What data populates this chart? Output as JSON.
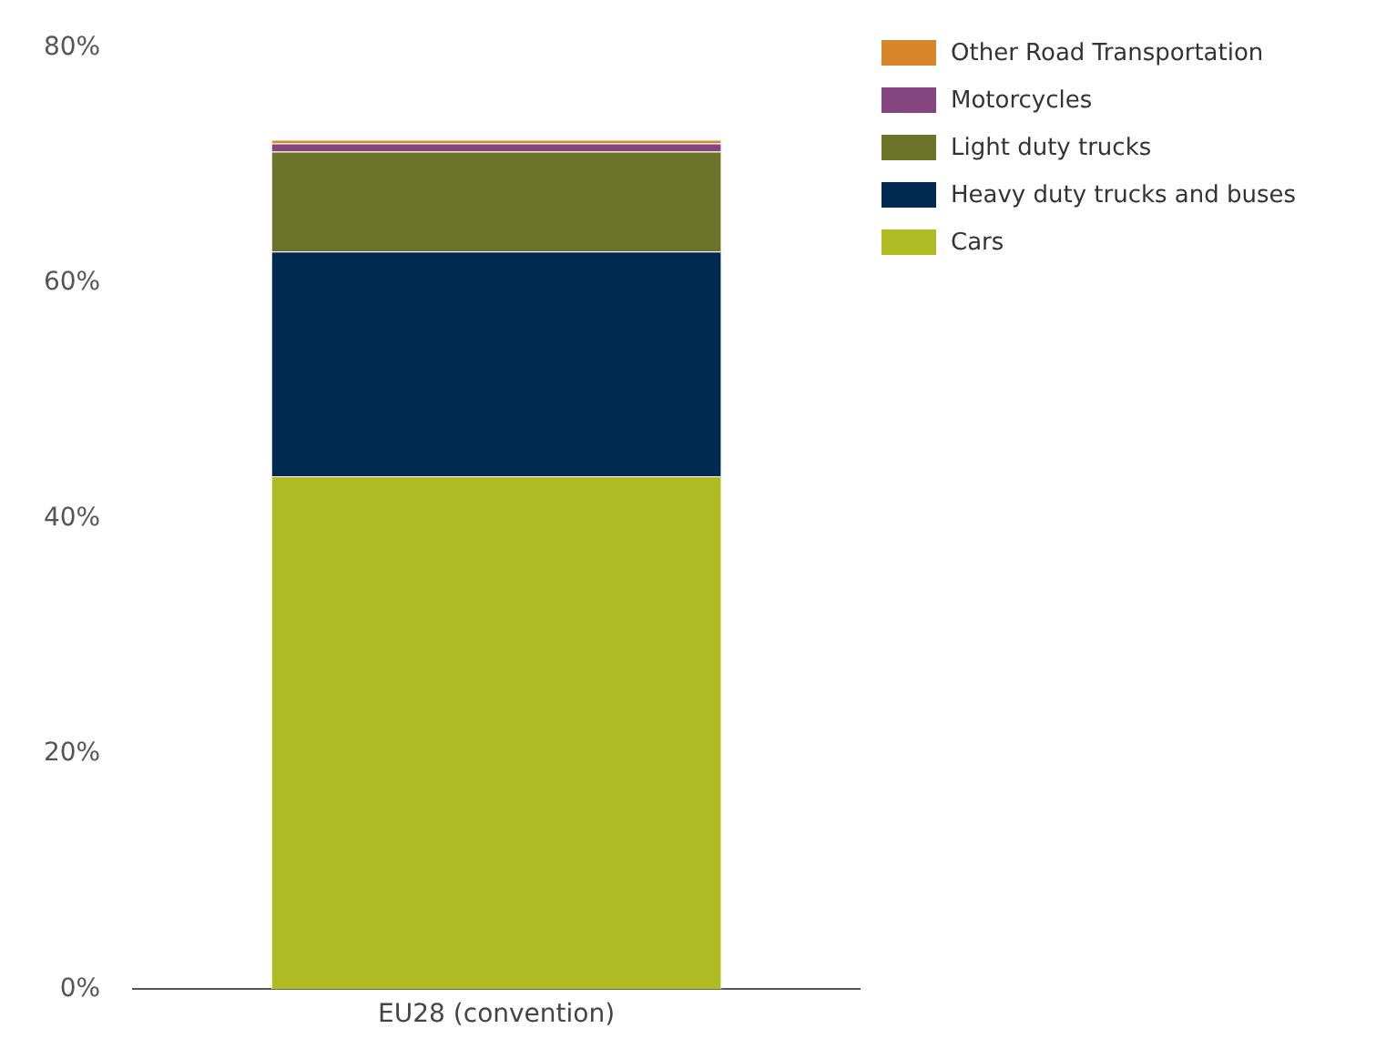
{
  "chart_data": {
    "type": "bar",
    "stacked": true,
    "categories": [
      "EU28 (convention)"
    ],
    "series": [
      {
        "name": "Cars",
        "color": "#afbb22",
        "values": [
          43.6
        ]
      },
      {
        "name": "Heavy duty trucks and buses",
        "color": "#002a52",
        "values": [
          19.1
        ]
      },
      {
        "name": "Light duty trucks",
        "color": "#6b7428",
        "values": [
          8.5
        ]
      },
      {
        "name": "Motorcycles",
        "color": "#84457f",
        "values": [
          0.7
        ]
      },
      {
        "name": "Other Road Transportation",
        "color": "#d8862a",
        "values": [
          0.3
        ]
      }
    ],
    "ylim": [
      0,
      80
    ],
    "yticks": [
      {
        "value": 0,
        "label": "0%"
      },
      {
        "value": 20,
        "label": "20%"
      },
      {
        "value": 40,
        "label": "40%"
      },
      {
        "value": 60,
        "label": "60%"
      },
      {
        "value": 80,
        "label": "80%"
      }
    ],
    "grid": false,
    "legend": "top right"
  }
}
